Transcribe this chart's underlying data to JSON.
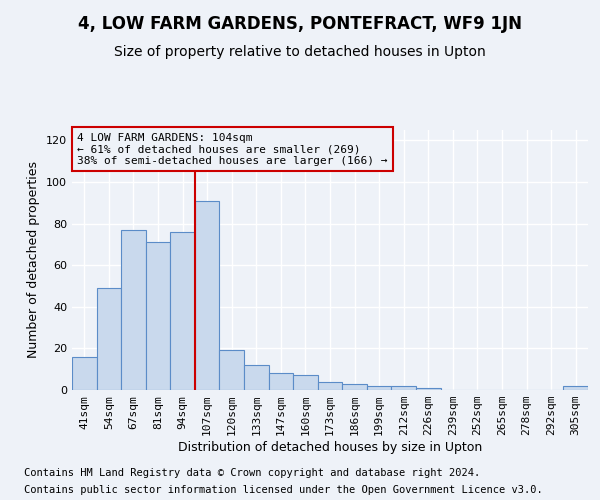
{
  "title": "4, LOW FARM GARDENS, PONTEFRACT, WF9 1JN",
  "subtitle": "Size of property relative to detached houses in Upton",
  "xlabel": "Distribution of detached houses by size in Upton",
  "ylabel": "Number of detached properties",
  "categories": [
    "41sqm",
    "54sqm",
    "67sqm",
    "81sqm",
    "94sqm",
    "107sqm",
    "120sqm",
    "133sqm",
    "147sqm",
    "160sqm",
    "173sqm",
    "186sqm",
    "199sqm",
    "212sqm",
    "226sqm",
    "239sqm",
    "252sqm",
    "265sqm",
    "278sqm",
    "292sqm",
    "305sqm"
  ],
  "values": [
    16,
    49,
    77,
    71,
    76,
    91,
    19,
    12,
    8,
    7,
    4,
    3,
    2,
    2,
    1,
    0,
    0,
    0,
    0,
    0,
    2
  ],
  "bar_color": "#c9d9ed",
  "bar_edge_color": "#5b8cc8",
  "vline_color": "#cc0000",
  "vline_x_index": 5,
  "annotation_text": "4 LOW FARM GARDENS: 104sqm\n← 61% of detached houses are smaller (269)\n38% of semi-detached houses are larger (166) →",
  "annotation_box_color": "#cc0000",
  "ylim": [
    0,
    125
  ],
  "yticks": [
    0,
    20,
    40,
    60,
    80,
    100,
    120
  ],
  "footer1": "Contains HM Land Registry data © Crown copyright and database right 2024.",
  "footer2": "Contains public sector information licensed under the Open Government Licence v3.0.",
  "background_color": "#eef2f8",
  "grid_color": "#ffffff",
  "title_fontsize": 12,
  "subtitle_fontsize": 10,
  "axis_label_fontsize": 9,
  "tick_fontsize": 8,
  "annotation_fontsize": 8,
  "footer_fontsize": 7.5
}
